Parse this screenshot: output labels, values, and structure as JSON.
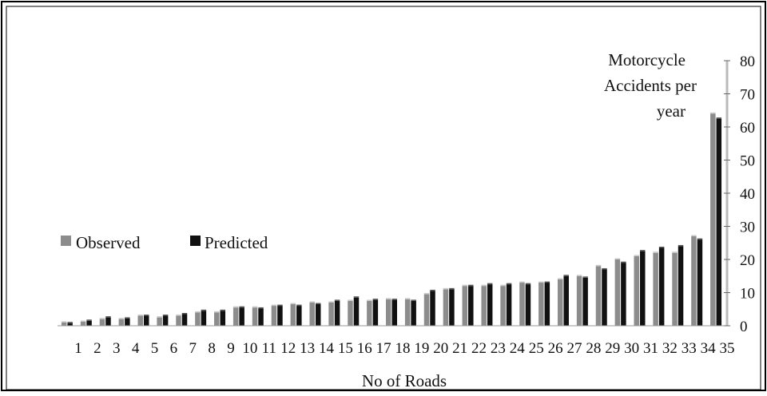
{
  "chart_data": {
    "type": "bar",
    "title": "",
    "xlabel": "No of Roads",
    "ylabel": "Motorcycle Accidents per year",
    "ylabel_lines": [
      "Motorcycle",
      "Accidents per",
      "year"
    ],
    "yaxis_position": "right",
    "ylim": [
      0,
      80
    ],
    "yticks": [
      "0",
      "10",
      "20",
      "30",
      "40",
      "50",
      "60",
      "70",
      "80"
    ],
    "grid": false,
    "legend_position": "left",
    "categories": [
      "1",
      "2",
      "3",
      "4",
      "5",
      "6",
      "7",
      "8",
      "9",
      "10",
      "11",
      "12",
      "13",
      "14",
      "15",
      "16",
      "17",
      "18",
      "19",
      "20",
      "21",
      "22",
      "23",
      "24",
      "25",
      "26",
      "27",
      "28",
      "29",
      "30",
      "31",
      "32",
      "33",
      "34",
      "35"
    ],
    "series": [
      {
        "name": "Observed",
        "color": "#8c8c8c",
        "values": [
          1,
          1.2,
          2,
          2,
          3,
          2.5,
          3,
          4,
          4,
          5.5,
          5.5,
          6,
          6.5,
          7,
          7,
          7.5,
          7.5,
          8,
          8,
          9.5,
          11,
          12,
          12,
          12,
          13,
          13,
          14,
          15,
          18,
          20,
          21,
          22,
          22,
          27,
          64
        ]
      },
      {
        "name": "Predicted",
        "color": "#111111",
        "values": [
          0.8,
          1.5,
          2.5,
          2.2,
          3,
          3,
          3.5,
          4.5,
          4.5,
          5.5,
          5.2,
          6,
          6,
          6.5,
          7.5,
          8.5,
          7.8,
          7.8,
          7.5,
          10.5,
          11,
          12,
          12.5,
          12.5,
          12.5,
          13,
          15,
          14.5,
          17,
          19,
          22.5,
          23.5,
          24,
          26,
          62.5
        ]
      }
    ]
  }
}
